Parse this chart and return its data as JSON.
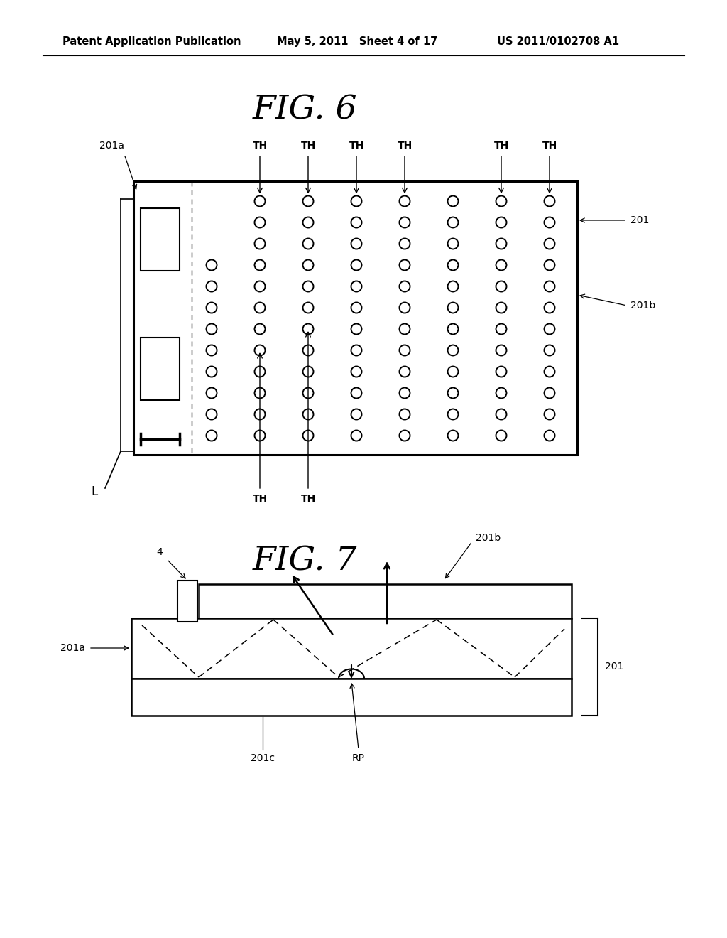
{
  "bg_color": "#ffffff",
  "header_text": "Patent Application Publication",
  "header_date": "May 5, 2011   Sheet 4 of 17",
  "header_patent": "US 2011/0102708 A1",
  "fig6_title": "FIG. 6",
  "fig7_title": "FIG. 7"
}
